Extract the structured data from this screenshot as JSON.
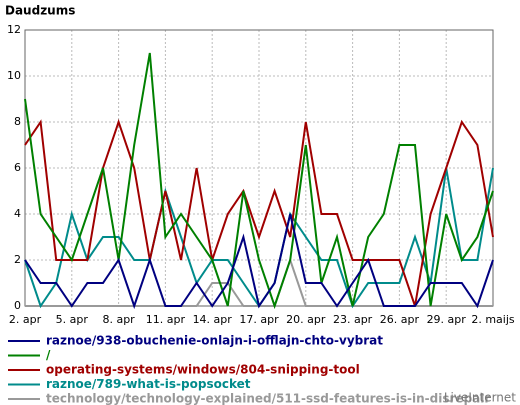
{
  "chart_data": {
    "type": "line",
    "title": "Daudzums",
    "categories": [
      "2. apr",
      null,
      null,
      "5. apr",
      null,
      null,
      "8. apr",
      null,
      null,
      "11. apr",
      null,
      null,
      "14. apr",
      null,
      null,
      "17. apr",
      null,
      null,
      "20. apr",
      null,
      null,
      "23. apr",
      null,
      null,
      "26. apr",
      null,
      null,
      "29. apr",
      null,
      null,
      "2. maijs"
    ],
    "series": [
      {
        "name": "raznoe/938-obuchenie-onlajn-i-offlajn-chto-vybrat",
        "color": "#000080",
        "values": [
          2,
          1,
          1,
          0,
          1,
          1,
          2,
          0,
          2,
          0,
          0,
          1,
          0,
          1,
          3,
          0,
          1,
          4,
          1,
          1,
          0,
          1,
          2,
          0,
          0,
          0,
          1,
          1,
          1,
          0,
          2
        ]
      },
      {
        "name": "/",
        "color": "#008000",
        "values": [
          9,
          4,
          3,
          2,
          4,
          6,
          2,
          7,
          11,
          3,
          4,
          3,
          2,
          0,
          5,
          2,
          0,
          2,
          7,
          1,
          3,
          0,
          3,
          4,
          7,
          7,
          0,
          4,
          2,
          3,
          5
        ]
      },
      {
        "name": "operating-systems/windows/804-snipping-tool",
        "color": "#a00000",
        "values": [
          7,
          8,
          2,
          2,
          2,
          6,
          8,
          6,
          2,
          5,
          2,
          6,
          2,
          4,
          5,
          3,
          5,
          3,
          8,
          4,
          4,
          2,
          2,
          2,
          2,
          0,
          4,
          6,
          8,
          7,
          3
        ]
      },
      {
        "name": "raznoe/789-what-is-popsocket",
        "color": "#008b8b",
        "values": [
          2,
          0,
          1,
          4,
          2,
          3,
          3,
          2,
          2,
          5,
          3,
          1,
          2,
          2,
          1,
          0,
          1,
          4,
          3,
          2,
          2,
          0,
          1,
          1,
          1,
          3,
          1,
          6,
          2,
          2,
          6
        ]
      },
      {
        "name": "technology/technology-explained/511-ssd-features-is-in-disrepair",
        "color": "#999999",
        "values": [
          0,
          0,
          0,
          0,
          0,
          0,
          0,
          0,
          0,
          0,
          0,
          0,
          1,
          1,
          0,
          0,
          0,
          2,
          0,
          0,
          0,
          0,
          0,
          0,
          0,
          0,
          0,
          0,
          0,
          0,
          0
        ]
      }
    ],
    "ylim": [
      0,
      12
    ],
    "yticks": [
      0,
      2,
      4,
      6,
      8,
      10,
      12
    ],
    "grid": true,
    "watermark": "LiveInternet"
  }
}
